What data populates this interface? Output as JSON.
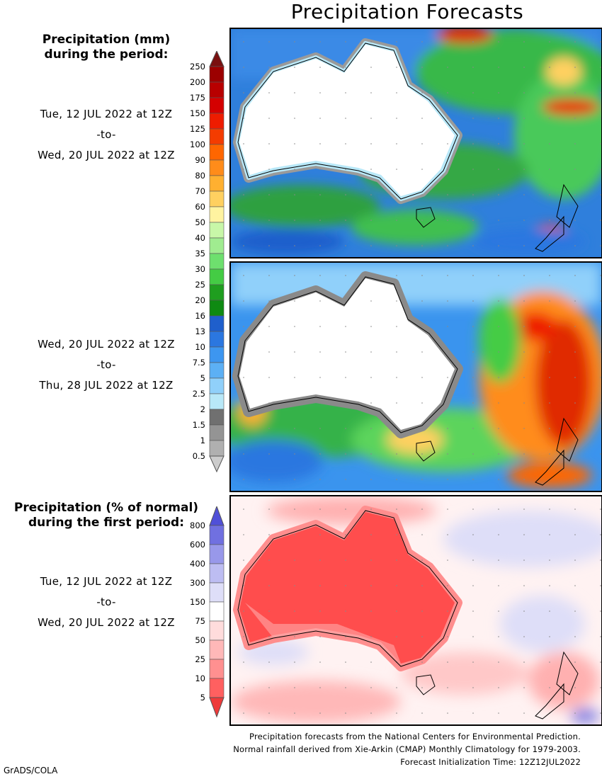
{
  "title": "Precipitation Forecasts",
  "precip_legend": {
    "header_line1": "Precipitation (mm)",
    "header_line2": "during the period:",
    "ticks": [
      "250",
      "200",
      "175",
      "150",
      "125",
      "100",
      "90",
      "80",
      "70",
      "60",
      "50",
      "40",
      "35",
      "30",
      "25",
      "20",
      "16",
      "13",
      "10",
      "7.5",
      "5",
      "2.5",
      "2",
      "1.5",
      "1",
      "0.5"
    ],
    "colors": [
      "#7a1010",
      "#9c0000",
      "#b80000",
      "#d40000",
      "#ee1c00",
      "#f43c00",
      "#ff6600",
      "#ff8c1a",
      "#ffb030",
      "#ffd060",
      "#fff3a0",
      "#c8f7a8",
      "#a0ec90",
      "#6ee06e",
      "#44cc44",
      "#1f9e1f",
      "#0f8a12",
      "#1f5fcc",
      "#2b77e0",
      "#3d96f0",
      "#5cb0f5",
      "#90d0fa",
      "#b8e8f8",
      "#707070",
      "#949494",
      "#b0b0b0",
      "#cccccc"
    ]
  },
  "period1": {
    "start": "Tue, 12 JUL 2022 at 12Z",
    "sep": "-to-",
    "end": "Wed, 20 JUL 2022 at 12Z"
  },
  "period2": {
    "start": "Wed, 20 JUL 2022 at 12Z",
    "sep": "-to-",
    "end": "Thu, 28 JUL 2022 at 12Z"
  },
  "anomaly_legend": {
    "header_line1": "Precipitation (% of normal)",
    "header_line2": "during the first period:",
    "ticks": [
      "800",
      "600",
      "400",
      "300",
      "150",
      "75",
      "50",
      "25",
      "10",
      "5"
    ],
    "colors": [
      "#5050d8",
      "#7070e0",
      "#9898ea",
      "#bdbdf2",
      "#dedef8",
      "#ffffff",
      "#ffdcdc",
      "#ffb8b8",
      "#ff9090",
      "#ff6060",
      "#ee3a3a"
    ]
  },
  "period3": {
    "start": "Tue, 12 JUL 2022 at 12Z",
    "sep": "-to-",
    "end": "Wed, 20 JUL 2022 at 12Z"
  },
  "footer": {
    "line1": "Precipitation forecasts from the National Centers for Environmental Prediction.",
    "line2": "Normal rainfall derived from Xie-Arkin (CMAP) Monthly Climatology for 1979-2003.",
    "line3": "Forecast Initialization Time: 12Z12JUL2022"
  },
  "credit": "GrADS/COLA"
}
